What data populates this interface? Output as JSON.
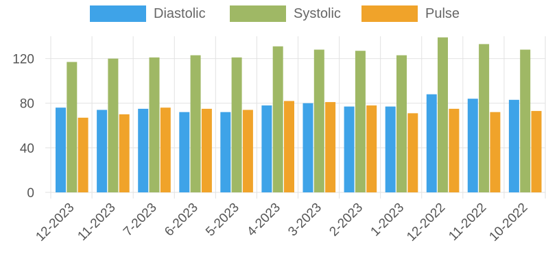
{
  "chart_data": {
    "type": "bar",
    "categories": [
      "12-2023",
      "11-2023",
      "7-2023",
      "6-2023",
      "5-2023",
      "4-2023",
      "3-2023",
      "2-2023",
      "1-2023",
      "12-2022",
      "11-2022",
      "10-2022"
    ],
    "series": [
      {
        "name": "Diastolic",
        "color": "#3ea3e8",
        "values": [
          76,
          74,
          75,
          72,
          72,
          78,
          80,
          77,
          77,
          88,
          84,
          83
        ]
      },
      {
        "name": "Systolic",
        "color": "#9fb865",
        "values": [
          117,
          120,
          121,
          123,
          121,
          131,
          128,
          127,
          123,
          139,
          133,
          128
        ]
      },
      {
        "name": "Pulse",
        "color": "#f0a32a",
        "values": [
          67,
          70,
          76,
          75,
          74,
          82,
          81,
          78,
          71,
          75,
          72,
          73
        ]
      }
    ],
    "yticks": [
      0,
      40,
      80,
      120
    ],
    "ylim": [
      0,
      140
    ],
    "grid": true,
    "legend": "top-center"
  }
}
